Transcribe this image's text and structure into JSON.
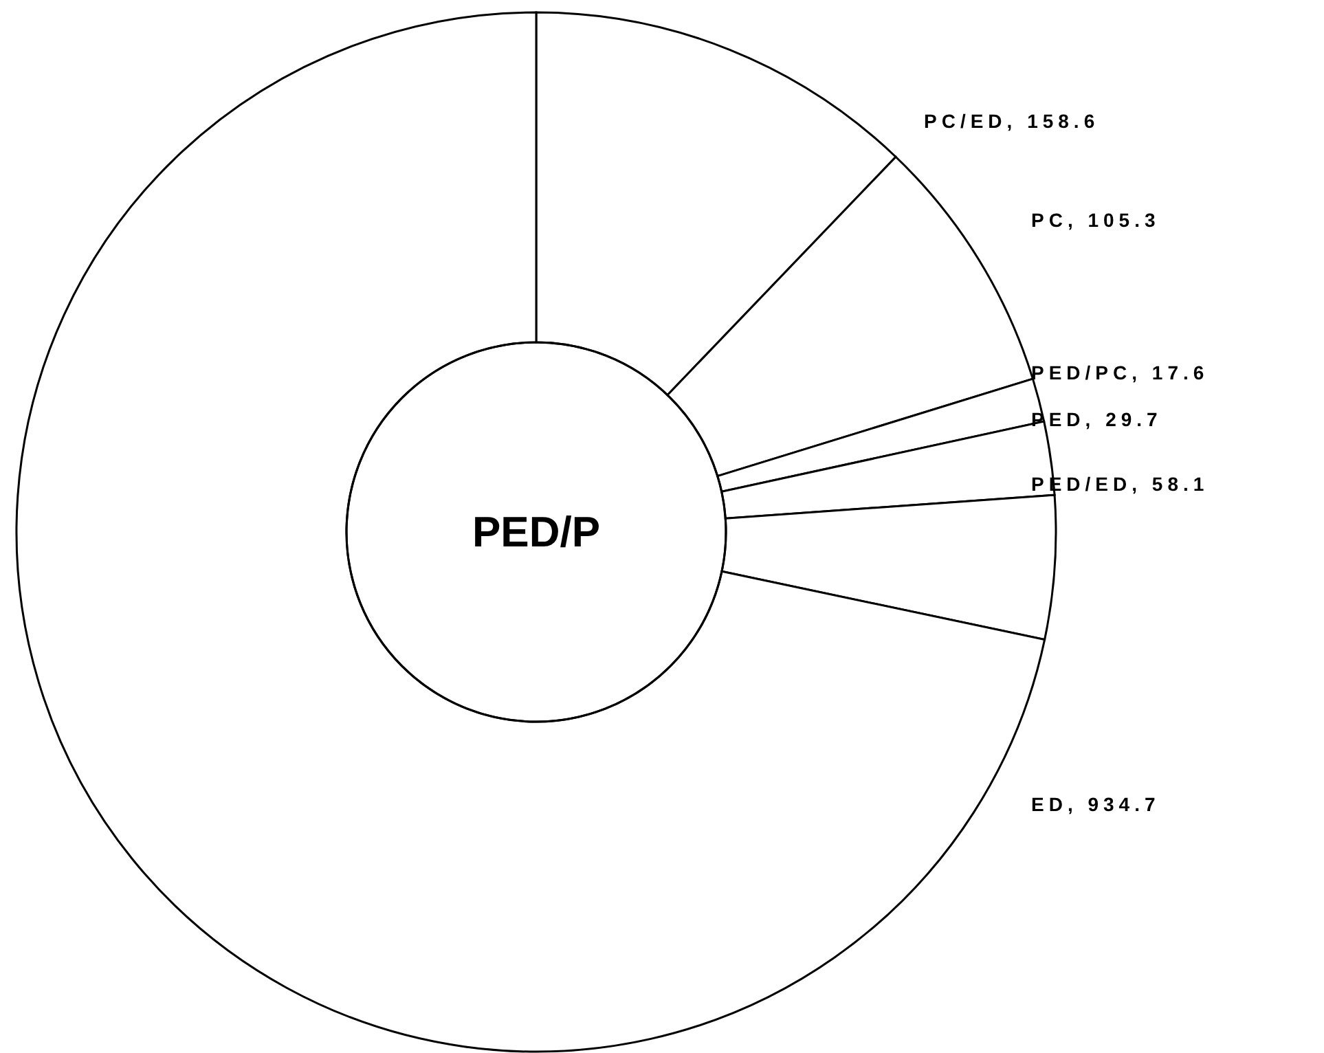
{
  "chart_data": {
    "type": "donut",
    "title": "PED/P",
    "categories": [
      "PC/ED",
      "PC",
      "PED/PC",
      "PED",
      "PED/ED",
      "ED"
    ],
    "values": [
      158.6,
      105.3,
      17.6,
      29.7,
      58.1,
      934.7
    ],
    "value_labels": [
      ", 158.6",
      ", 105.3",
      ", 17.6",
      ", 29.7",
      ", 58.1",
      ", 934.7"
    ],
    "colors": [
      "#ffffff",
      "#ffffff",
      "#ffffff",
      "#ffffff",
      "#ffffff",
      "#ffffff"
    ],
    "legend": false
  }
}
